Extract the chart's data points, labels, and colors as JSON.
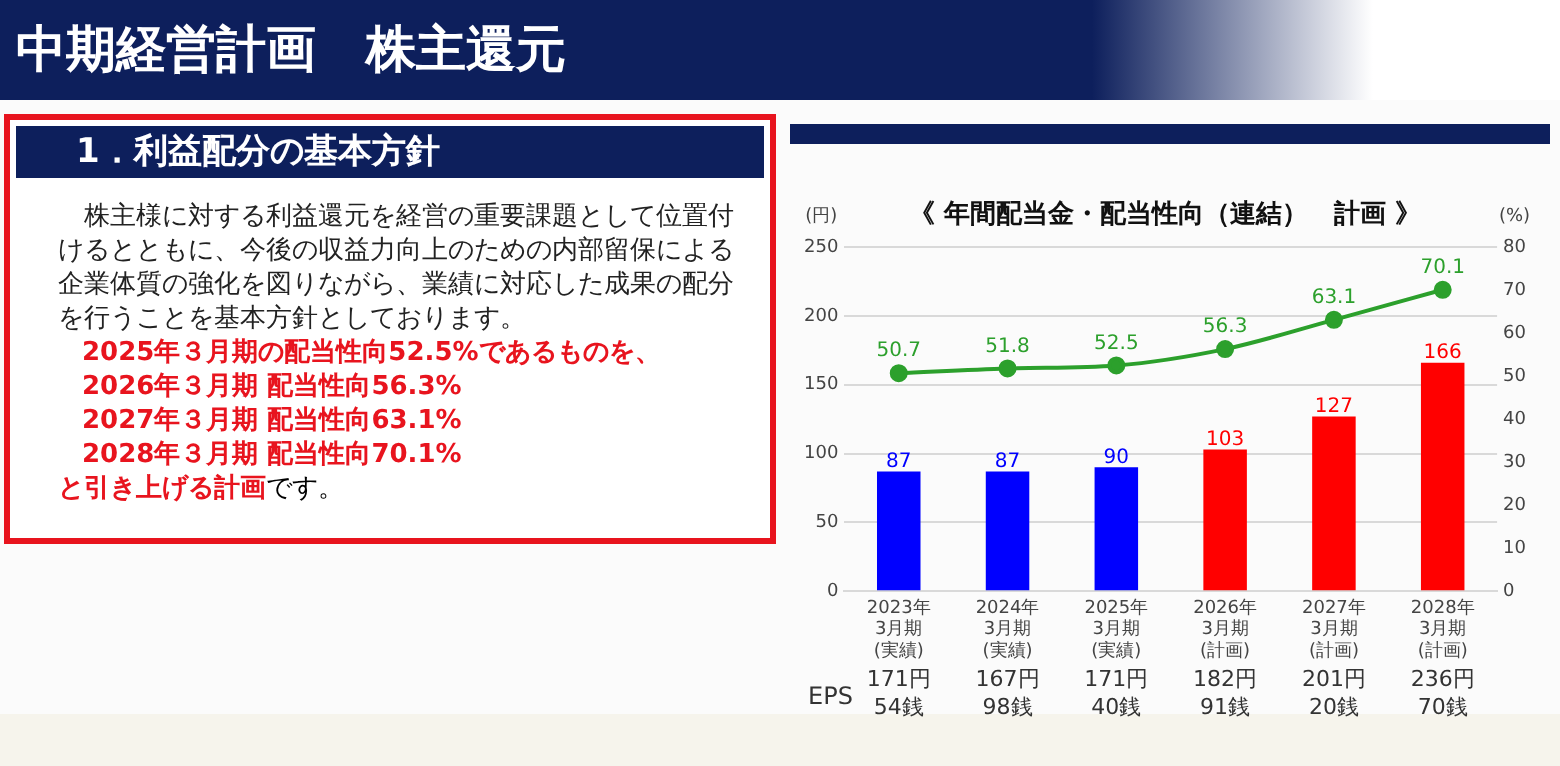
{
  "chart_data": {
    "type": "bar",
    "title": "《 年間配当金・配当性向（連結）　計画 》",
    "ylabel": "(円)",
    "y2label": "(%)",
    "categories": [
      "2023年\n3月期\n(実績)",
      "2024年\n3月期\n(実績)",
      "2025年\n3月期\n(実績)",
      "2026年\n3月期\n(計画)",
      "2027年\n3月期\n(計画)",
      "2028年\n3月期\n(計画)"
    ],
    "series": [
      {
        "values": [
          87,
          87,
          90,
          103,
          127,
          166
        ],
        "colors": [
          "#0000ff",
          "#0000ff",
          "#0000ff",
          "#ff0000",
          "#ff0000",
          "#ff0000"
        ]
      },
      {
        "type": "line",
        "axis": "y2",
        "color": "#2ca02c",
        "values": [
          50.7,
          51.8,
          52.5,
          56.3,
          63.1,
          70.1
        ],
        "marker": "circle"
      }
    ],
    "ylim": [
      0,
      250
    ],
    "yticks": [
      0,
      50,
      100,
      150,
      200,
      250
    ],
    "y2lim": [
      0,
      80
    ],
    "y2ticks": [
      0,
      10,
      20,
      30,
      40,
      50,
      60,
      70,
      80
    ],
    "grid": "y",
    "legend": false,
    "data_labels": true,
    "annotations": [
      "中期経営計画　株主還元",
      "1．利益配分の基本方針",
      "株主様に対する利益還元を経営の重要課題として位置付けるとともに、今後の収益力向上のための内部留保による企業体質の強化を図りながら、業績に対応した成果の配分を行うことを基本方針としております。",
      "2025年３月期の配当性向52.5%であるものを、",
      "2026年３月期 配当性向56.3%",
      "2027年３月期 配当性向63.1%",
      "2028年３月期 配当性向70.1%",
      "と引き上げる計画",
      "です。",
      "EPS",
      "171円\n54銭",
      "167円\n98銭",
      "171円\n40銭",
      "182円\n91銭",
      "201円\n20銭",
      "236円\n70銭"
    ]
  }
}
